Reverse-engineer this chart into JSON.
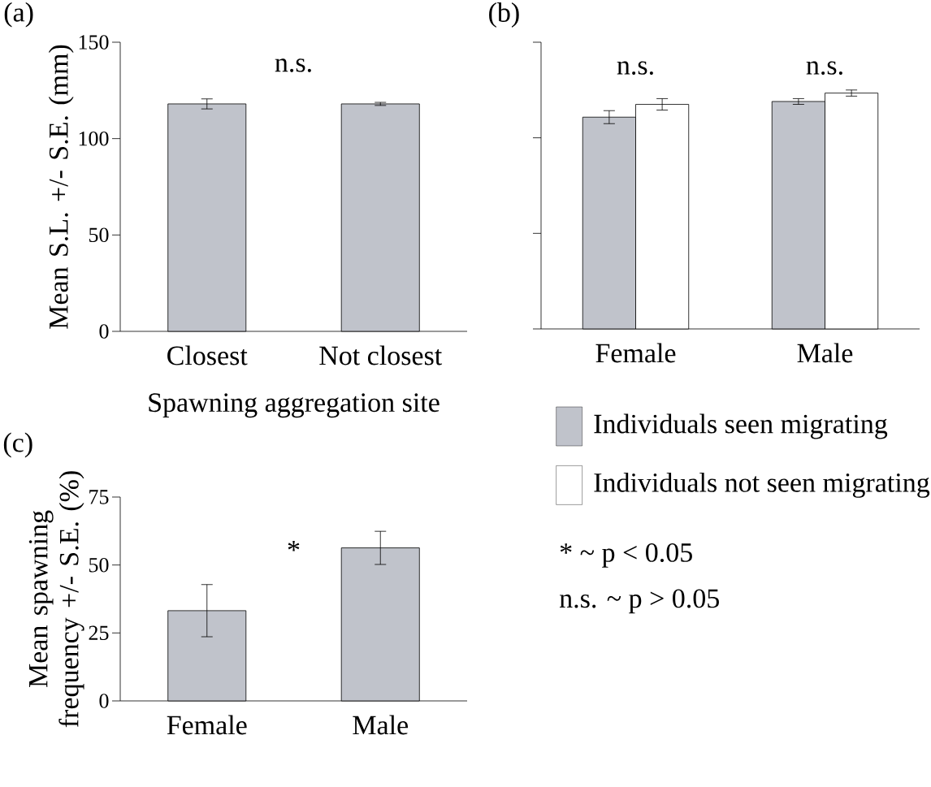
{
  "chart_data": [
    {
      "type": "bar",
      "title": "(a)",
      "xlabel": "Spawning aggregation site",
      "ylabel": "Mean S.L. +/- S.E. (mm)",
      "categories": [
        "Closest",
        "Not closest"
      ],
      "values": [
        118.0,
        118.0
      ],
      "errors": [
        2.6,
        0.8
      ],
      "color": "#c0c3cb",
      "ylim": [
        0,
        150
      ],
      "yticks": [
        0,
        50,
        100,
        150
      ],
      "annotations": [
        "n.s."
      ]
    },
    {
      "type": "bar",
      "title": "(b)",
      "categories": [
        "Female",
        "Male"
      ],
      "series": [
        {
          "name": "Individuals seen migrating",
          "color": "#c0c3cb",
          "values": [
            110.8,
            119.0
          ],
          "errors": [
            3.4,
            1.5
          ]
        },
        {
          "name": "Individuals not seen migrating",
          "color": "#ffffff",
          "values": [
            117.5,
            123.4
          ],
          "errors": [
            3.0,
            1.6
          ]
        }
      ],
      "ylim": [
        0,
        150
      ],
      "yticks": [
        0,
        50,
        100,
        150
      ],
      "tick_labels": "x",
      "legend": "bottom",
      "annotations": [
        "n.s.",
        "n.s.",
        "* ~ p < 0.05",
        "n.s. ~ p > 0.05"
      ]
    },
    {
      "type": "bar",
      "title": "(c)",
      "ylabel": "Mean spawning frequency +/- S.E. (%)",
      "categories": [
        "Female",
        "Male"
      ],
      "values": [
        33.2,
        56.3
      ],
      "errors": [
        9.6,
        6.1
      ],
      "color": "#c0c3cb",
      "ylim": [
        0,
        75
      ],
      "yticks": [
        0,
        25,
        50,
        75
      ],
      "annotations": [
        "*"
      ]
    }
  ]
}
